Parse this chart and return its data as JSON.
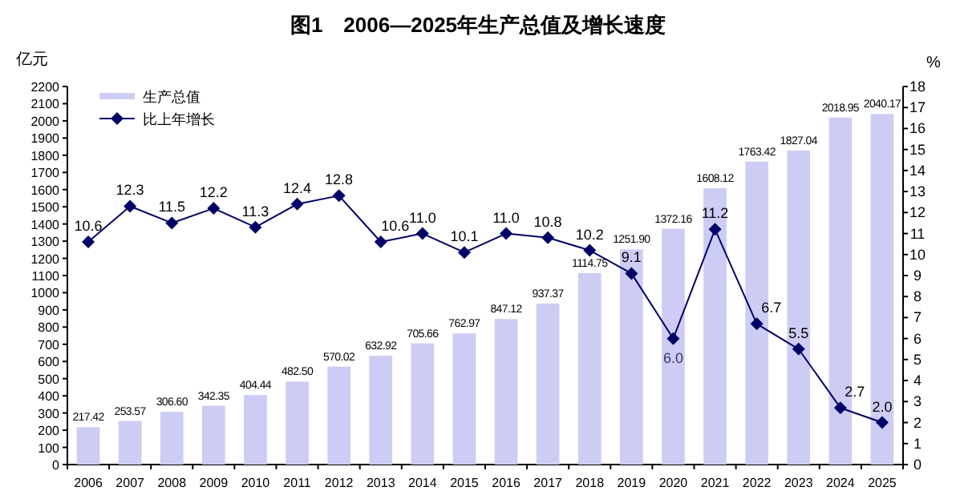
{
  "chart_data": {
    "type": "bar",
    "title": "图1　2006—2025年生产总值及增长速度",
    "ylabel": "亿元",
    "y2label": "%",
    "categories": [
      "2006",
      "2007",
      "2008",
      "2009",
      "2010",
      "2011",
      "2012",
      "2013",
      "2014",
      "2015",
      "2016",
      "2017",
      "2018",
      "2019",
      "2020",
      "2021",
      "2022",
      "2023",
      "2024",
      "2025"
    ],
    "series": [
      {
        "name": "生产总值",
        "color": "#ccccf5",
        "values": [
          217.42,
          253.57,
          306.6,
          342.35,
          404.44,
          482.5,
          570.02,
          632.92,
          705.66,
          762.97,
          847.12,
          937.37,
          1114.75,
          1251.9,
          1372.16,
          1608.12,
          1763.42,
          1827.04,
          2018.95,
          2040.17
        ],
        "value_labels": [
          "217.42",
          "253.57",
          "306.60",
          "342.35",
          "404.44",
          "482.50",
          "570.02",
          "632.92",
          "705.66",
          "762.97",
          "847.12",
          "937.37",
          "1114.75",
          "1251.90",
          "1372.16",
          "1608.12",
          "1763.42",
          "1827.04",
          "2018.95",
          "2040.17"
        ]
      },
      {
        "name": "比上年增长",
        "type": "line",
        "axis": "y2",
        "color": "#000066",
        "values": [
          10.6,
          12.3,
          11.5,
          12.2,
          11.3,
          12.4,
          12.8,
          10.6,
          11.0,
          10.1,
          11.0,
          10.8,
          10.2,
          9.1,
          6.0,
          11.2,
          6.7,
          5.5,
          2.7,
          2.0
        ],
        "value_labels": [
          "10.6",
          "12.3",
          "11.5",
          "12.2",
          "11.3",
          "12.4",
          "12.8",
          "10.6",
          "11.0",
          "10.1",
          "11.0",
          "10.8",
          "10.2",
          "9.1",
          "6.0",
          "11.2",
          "6.7",
          "5.5",
          "2.7",
          "2.0"
        ]
      }
    ],
    "ylim": [
      0,
      2200
    ],
    "yticks": [
      0,
      100,
      200,
      300,
      400,
      500,
      600,
      700,
      800,
      900,
      1000,
      1100,
      1200,
      1300,
      1400,
      1500,
      1600,
      1700,
      1800,
      1900,
      2000,
      2100,
      2200
    ],
    "y2lim": [
      0,
      18
    ],
    "y2ticks": [
      0,
      1,
      2,
      3,
      4,
      5,
      6,
      7,
      8,
      9,
      10,
      11,
      12,
      13,
      14,
      15,
      16,
      17,
      18
    ],
    "marker": "diamond",
    "line_style": "solid",
    "legend": "top left"
  }
}
